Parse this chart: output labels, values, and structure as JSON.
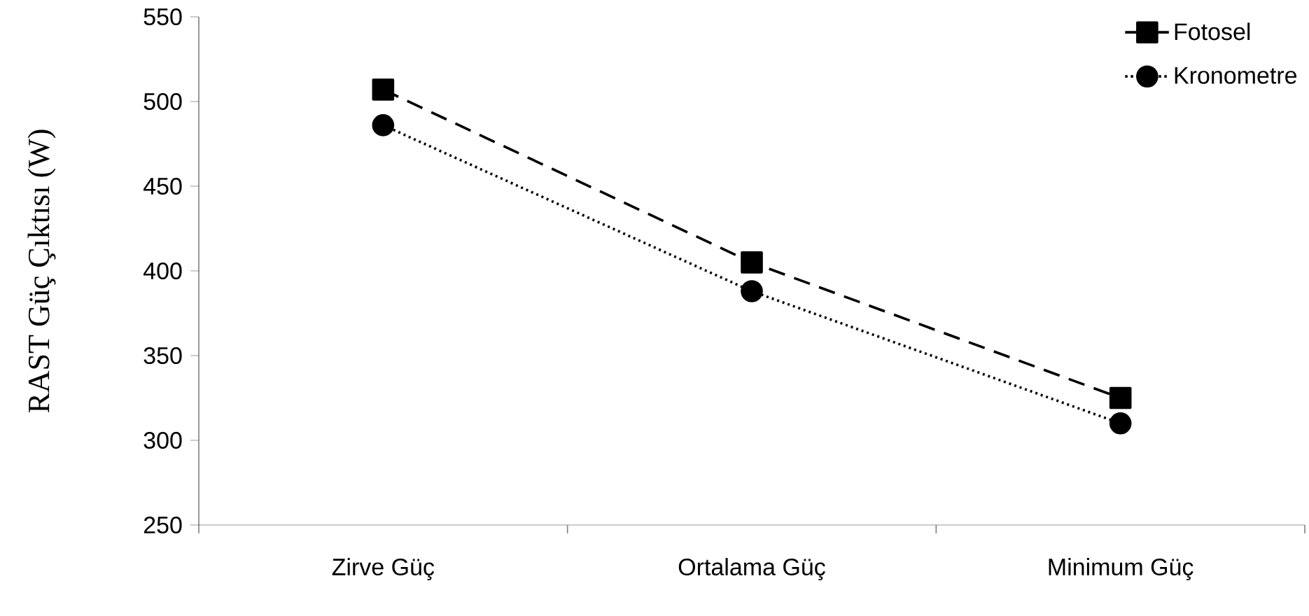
{
  "chart_data": {
    "type": "line",
    "ylabel": "RAST Güç Çıktısı (W)",
    "categories": [
      "Zirve Güç",
      "Ortalama Güç",
      "Minimum Güç"
    ],
    "series": [
      {
        "name": "Fotosel",
        "color": "#000000",
        "marker": "square",
        "line_style": "dashed",
        "values": [
          507,
          405,
          325
        ]
      },
      {
        "name": "Kronometre",
        "color": "#000000",
        "marker": "circle",
        "line_style": "dotted",
        "values": [
          486,
          388,
          310
        ]
      }
    ],
    "ylim": [
      250,
      550
    ],
    "yticks": [
      250,
      300,
      350,
      400,
      450,
      500,
      550
    ],
    "grid": false,
    "legend": "top right"
  }
}
